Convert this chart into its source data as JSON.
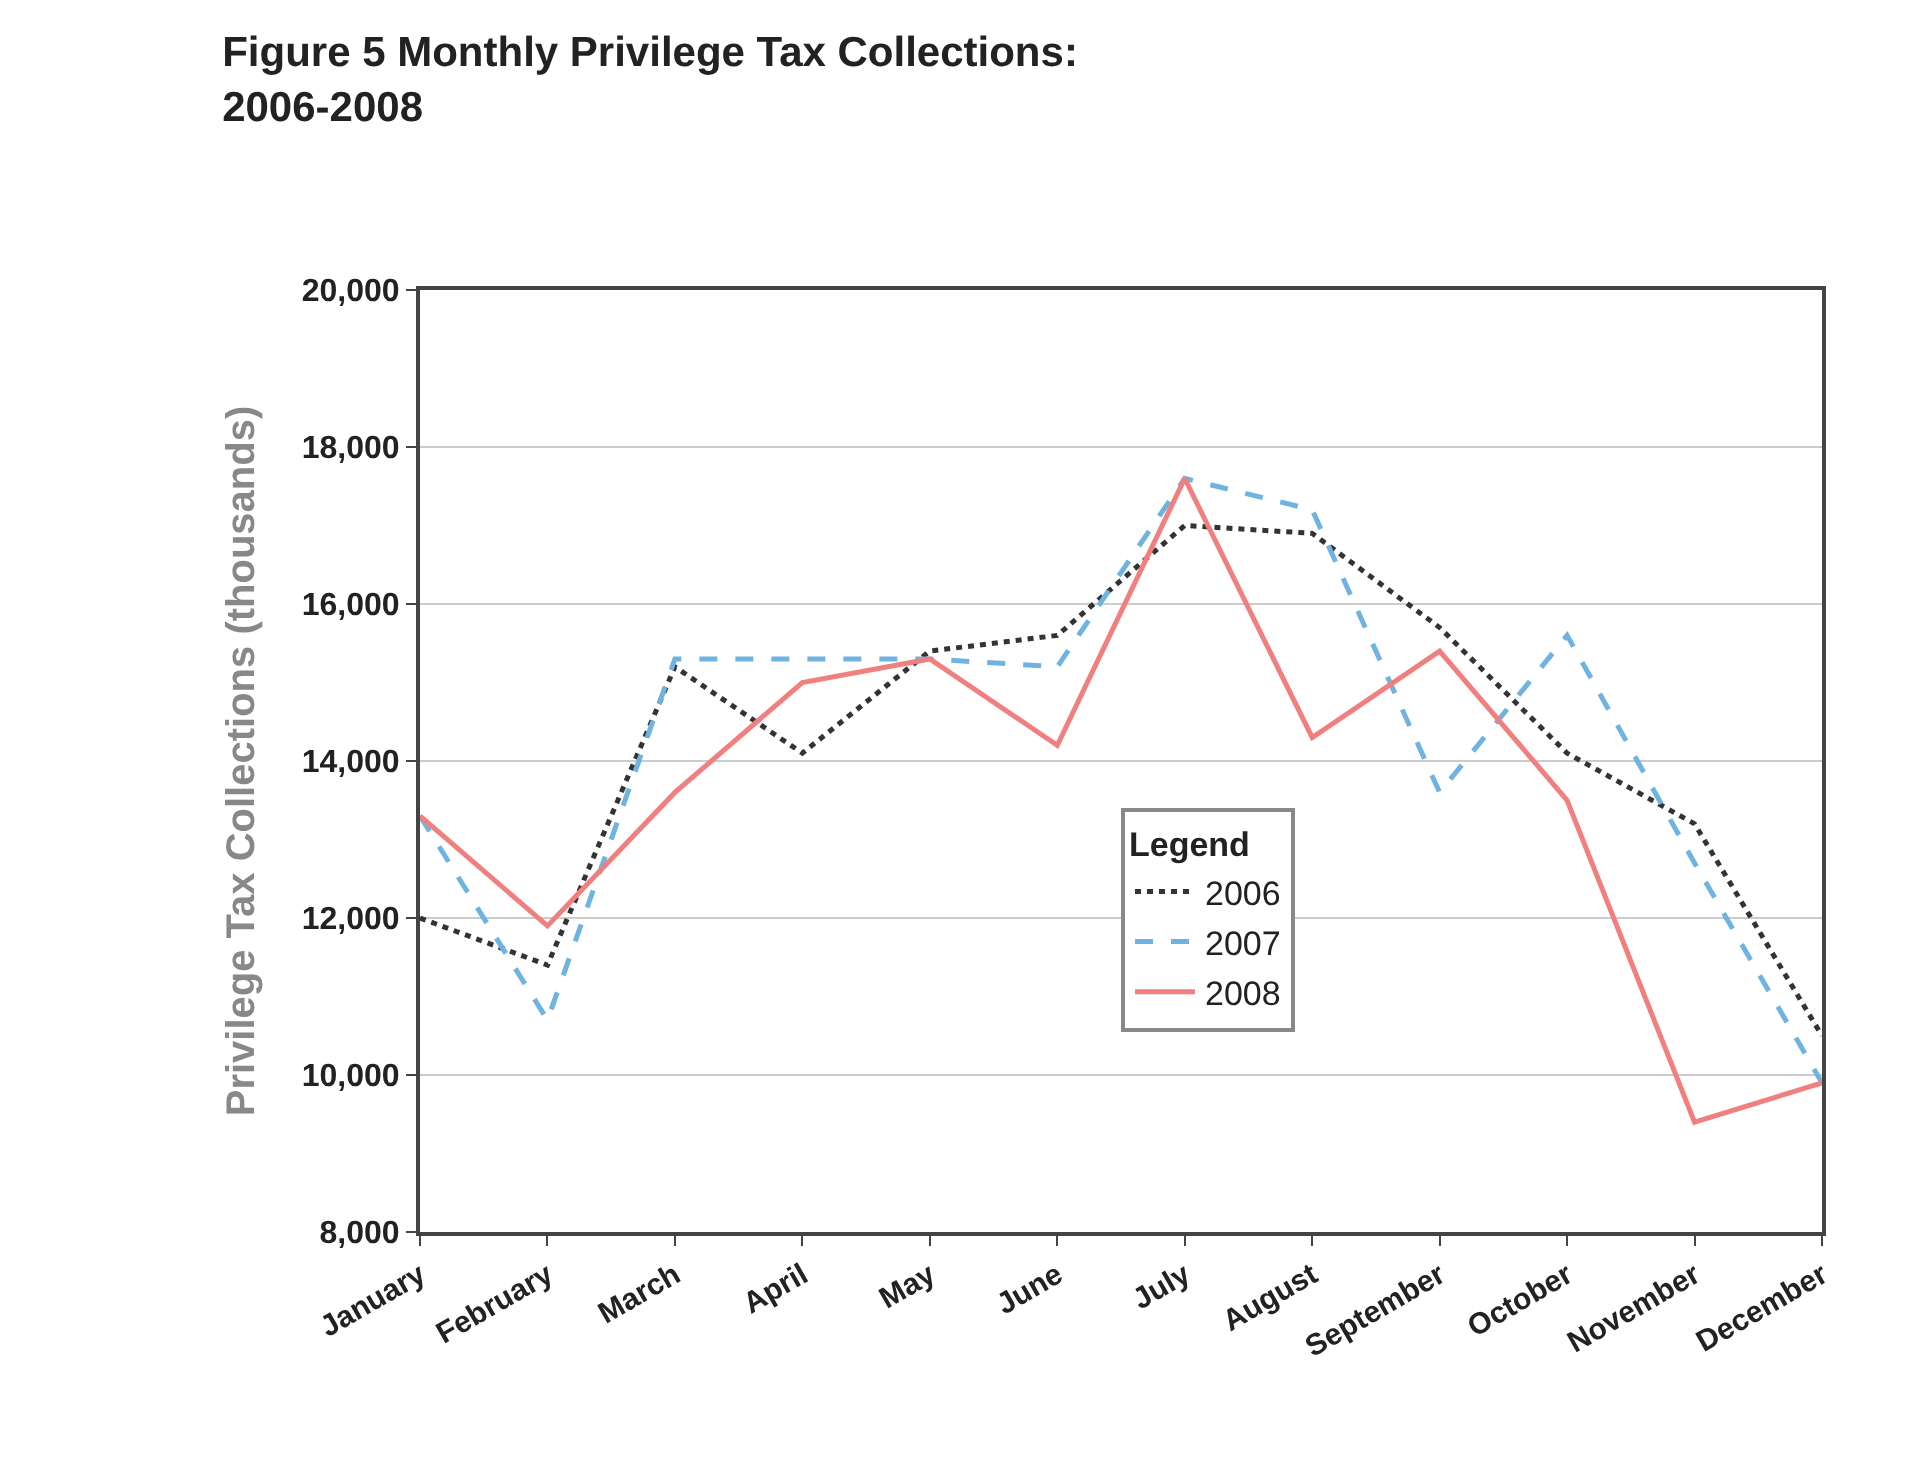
{
  "chart_data": {
    "type": "line",
    "title": "Figure 5 Monthly Privilege Tax Collections:\n2006-2008",
    "ylabel": "Privilege Tax Collections (thousands)",
    "legend_title": "Legend",
    "categories": [
      "January",
      "February",
      "March",
      "April",
      "May",
      "June",
      "July",
      "August",
      "September",
      "October",
      "November",
      "December"
    ],
    "series": [
      {
        "name": "2006",
        "color": "#333333",
        "line_style": "dotted",
        "values": [
          12000,
          11400,
          15200,
          14100,
          15400,
          15600,
          17000,
          16900,
          15700,
          14100,
          13200,
          10500
        ]
      },
      {
        "name": "2007",
        "color": "#6fb3e0",
        "line_style": "dashed",
        "values": [
          13300,
          10700,
          15300,
          15300,
          15300,
          15200,
          17600,
          17200,
          13600,
          15600,
          12700,
          9900
        ]
      },
      {
        "name": "2008",
        "color": "#f08080",
        "line_style": "solid",
        "values": [
          13300,
          11900,
          13600,
          15000,
          15300,
          14200,
          17600,
          14300,
          15400,
          13500,
          9400,
          9900
        ]
      }
    ],
    "ylim": [
      8000,
      20000
    ],
    "yticks": [
      {
        "value": 8000,
        "label": "8,000"
      },
      {
        "value": 10000,
        "label": "10,000"
      },
      {
        "value": 12000,
        "label": "12,000"
      },
      {
        "value": 14000,
        "label": "14,000"
      },
      {
        "value": 16000,
        "label": "16,000"
      },
      {
        "value": 18000,
        "label": "18,000"
      },
      {
        "value": 20000,
        "label": "20,000"
      }
    ],
    "grid": "y",
    "legend": "center",
    "marker": "none"
  }
}
